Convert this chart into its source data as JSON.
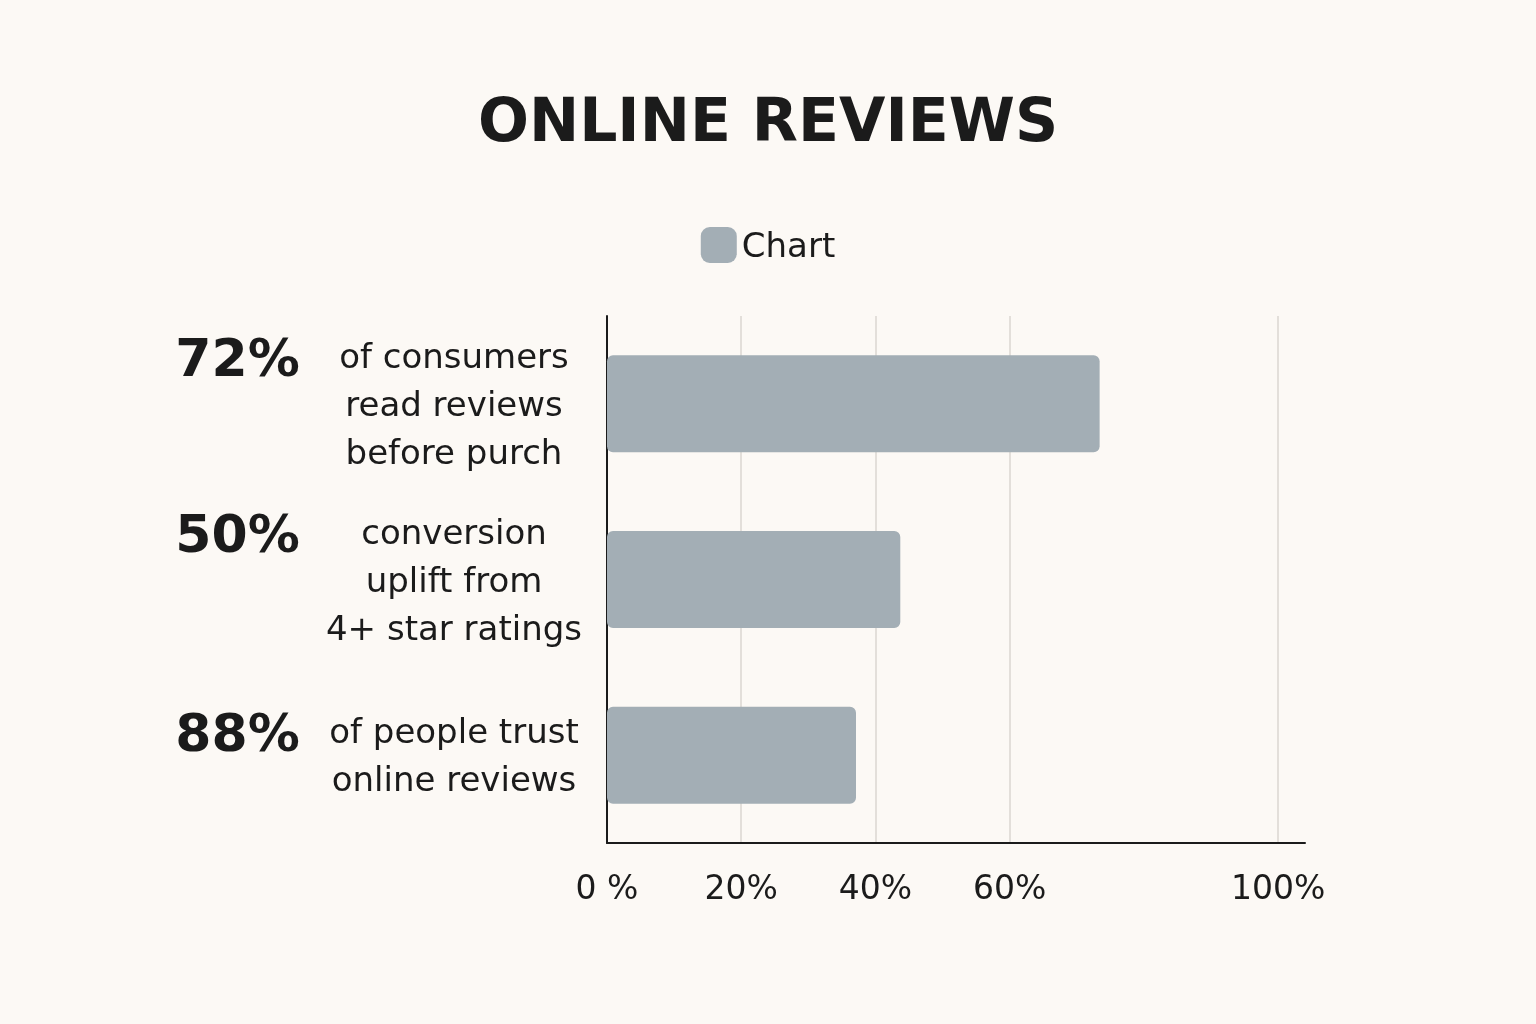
{
  "chart_data": {
    "type": "bar",
    "orientation": "horizontal",
    "title": "ONLINE REVIEWS",
    "categories": [
      "72% of consumers\nread reviews\nbefore purch",
      "50% conversion\nuplift from\n4+ star ratings",
      "88% of people trust\nonline reviews"
    ],
    "series": [
      {
        "name": "Chart",
        "color": "#a3aeb5",
        "values": [
          73.4,
          43.7,
          37.1
        ]
      }
    ],
    "xlim": [
      0,
      104
    ],
    "xticks": [
      {
        "value": 0,
        "label": "0 %"
      },
      {
        "value": 20,
        "label": "20%"
      },
      {
        "value": 40,
        "label": "40%"
      },
      {
        "value": 60,
        "label": "60%"
      },
      {
        "value": 100,
        "label": "100%"
      }
    ],
    "grid": "x",
    "legend": "top"
  }
}
